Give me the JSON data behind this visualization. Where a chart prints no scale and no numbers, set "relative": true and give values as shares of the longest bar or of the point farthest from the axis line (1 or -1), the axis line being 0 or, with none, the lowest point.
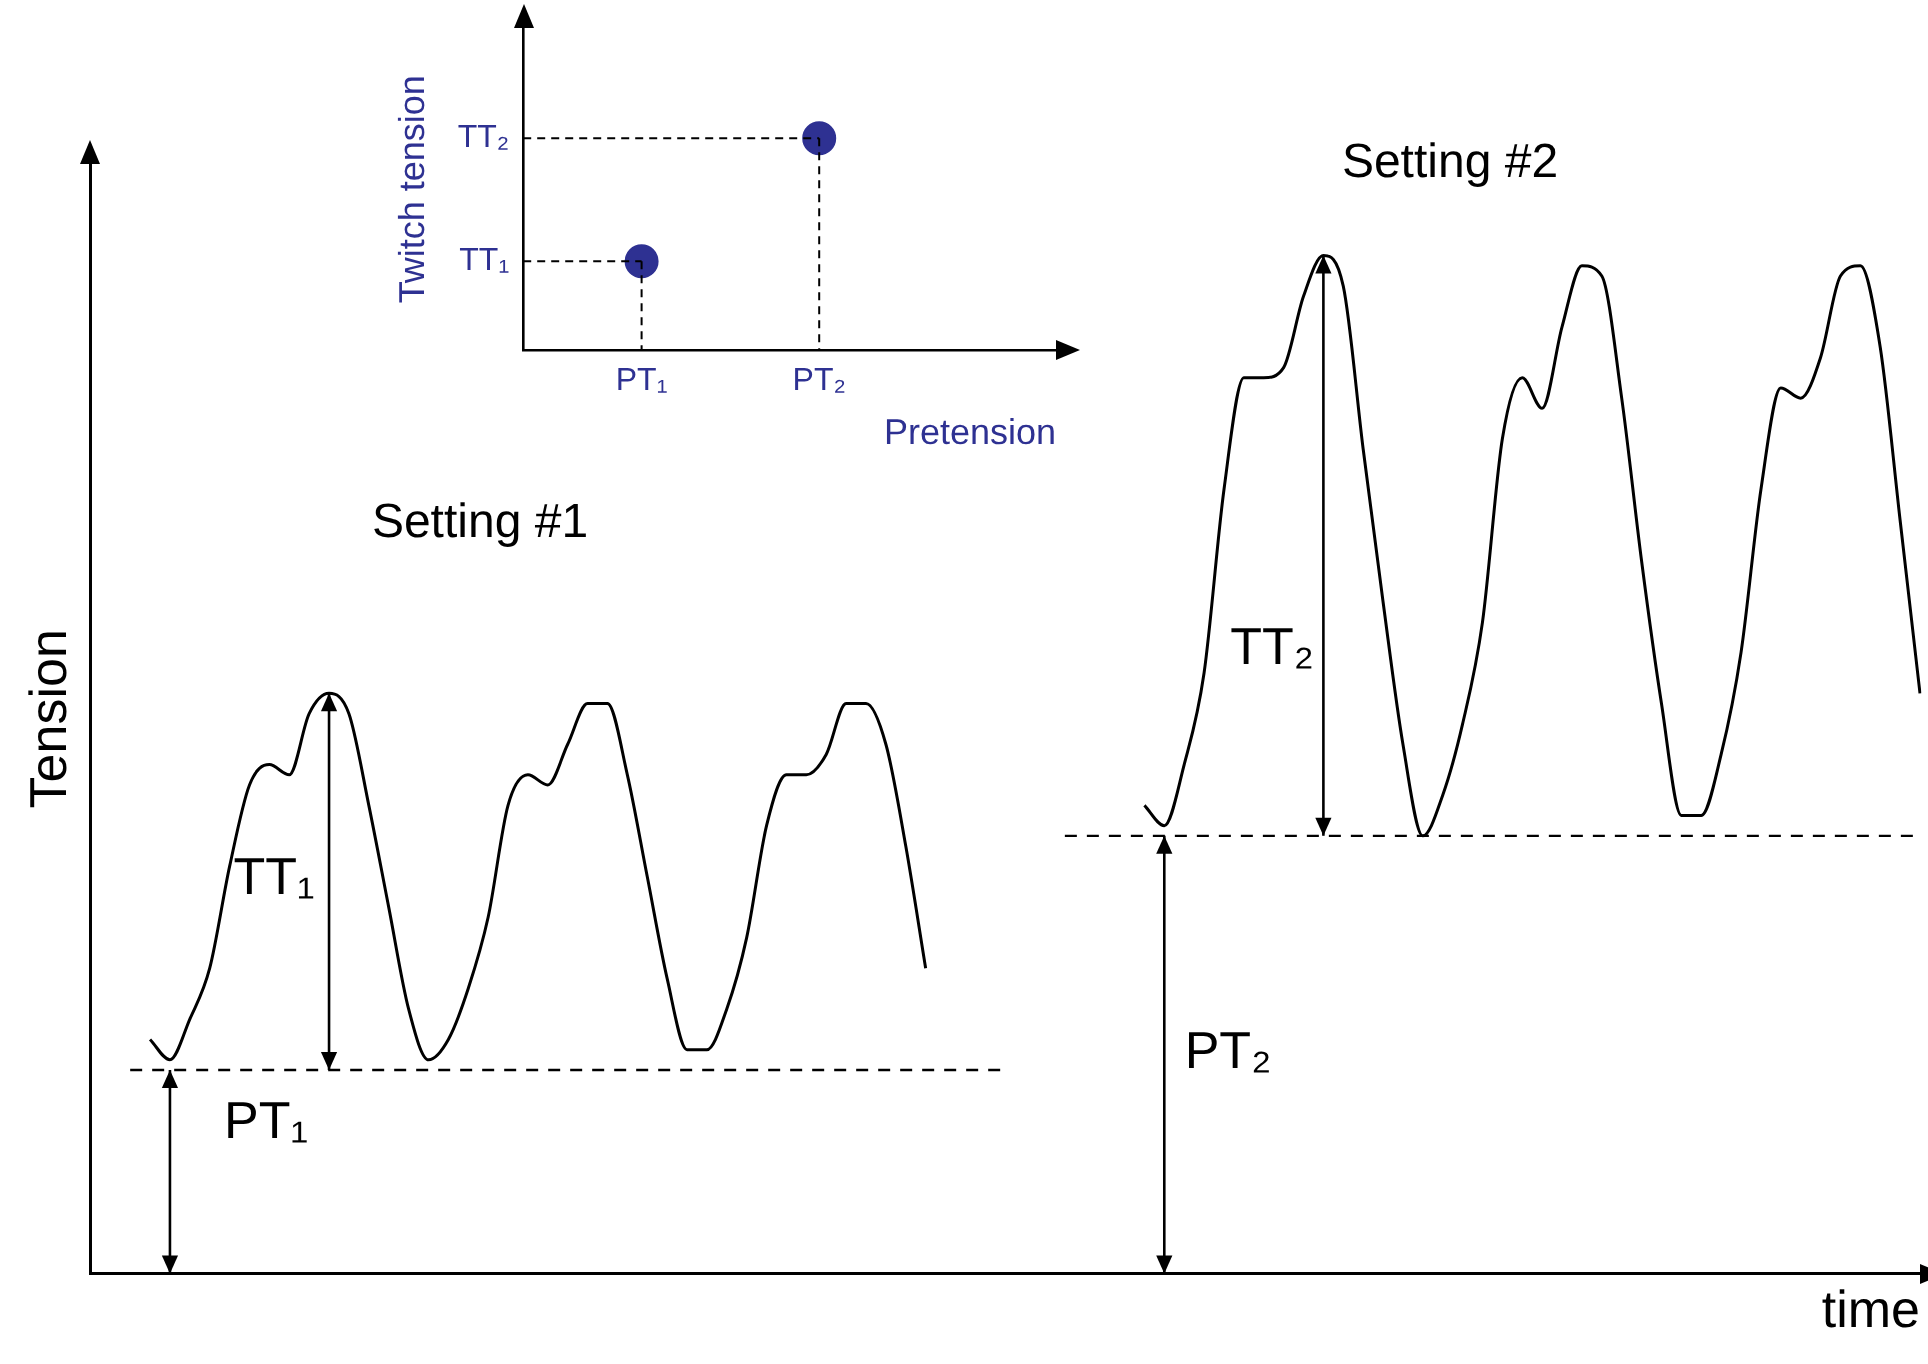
{
  "chart_data": [
    {
      "type": "line",
      "relative": true,
      "marker": "none",
      "xlabel": "time",
      "ylabel": "Tension",
      "annotations": [
        "Setting #1",
        "Setting #2",
        "TT₁",
        "PT₁",
        "TT₂",
        "PT₂"
      ],
      "categories": [
        null,
        null,
        null,
        null,
        null,
        null,
        null,
        null,
        null,
        null,
        null,
        null,
        null,
        null,
        null,
        null,
        null,
        null,
        null,
        null,
        null,
        null,
        null,
        null,
        null,
        null,
        null,
        null,
        null,
        null,
        null,
        null,
        null,
        null,
        null,
        null,
        null,
        null,
        null,
        null,
        null,
        null,
        null,
        null,
        null,
        null,
        null,
        null,
        null,
        null,
        null,
        null,
        null,
        null,
        null,
        null,
        null,
        null,
        null,
        null,
        null,
        null,
        null,
        null,
        null,
        null,
        null,
        null,
        null,
        null,
        null,
        null,
        null,
        null,
        null,
        null,
        null,
        null,
        null,
        null,
        null,
        null,
        null,
        null,
        null,
        null,
        null,
        null,
        null,
        null,
        null,
        null,
        null
      ],
      "series": [
        {
          "color": "#000000",
          "values": [
            null,
            null,
            null,
            0.23,
            0.21,
            0.25,
            0.3,
            0.4,
            0.48,
            0.5,
            0.49,
            0.55,
            0.57,
            0.55,
            0.46,
            0.36,
            0.26,
            0.21,
            0.23,
            0.28,
            0.35,
            0.46,
            0.49,
            0.48,
            0.52,
            0.56,
            0.56,
            0.49,
            0.39,
            0.29,
            0.22,
            0.22,
            0.26,
            0.33,
            0.44,
            0.49,
            0.49,
            0.51,
            0.56,
            0.56,
            0.52,
            0.42,
            0.3,
            null,
            null,
            null,
            null,
            null,
            null,
            null,
            null,
            null,
            null,
            null,
            null,
            null,
            null,
            null,
            null,
            null,
            null,
            null,
            null,
            null,
            null,
            null,
            null,
            null,
            null,
            null,
            null,
            null,
            null,
            null,
            null,
            null,
            null,
            null,
            null,
            null,
            null,
            null,
            null,
            null,
            null,
            null,
            null,
            null,
            null,
            null,
            null,
            null,
            null
          ]
        },
        {
          "color": "#000000",
          "values": [
            null,
            null,
            null,
            null,
            null,
            null,
            null,
            null,
            null,
            null,
            null,
            null,
            null,
            null,
            null,
            null,
            null,
            null,
            null,
            null,
            null,
            null,
            null,
            null,
            null,
            null,
            null,
            null,
            null,
            null,
            null,
            null,
            null,
            null,
            null,
            null,
            null,
            null,
            null,
            null,
            null,
            null,
            null,
            null,
            null,
            null,
            null,
            null,
            null,
            null,
            null,
            null,
            null,
            0.46,
            0.44,
            0.5,
            0.59,
            0.77,
            0.88,
            0.88,
            0.89,
            0.96,
            1,
            0.97,
            0.81,
            0.66,
            0.52,
            0.43,
            0.47,
            0.54,
            0.64,
            0.82,
            0.88,
            0.85,
            0.93,
            0.99,
            0.98,
            0.86,
            0.7,
            0.56,
            0.45,
            0.45,
            0.51,
            0.61,
            0.77,
            0.87,
            0.86,
            0.9,
            0.98,
            0.99,
            0.91,
            0.74,
            0.57
          ]
        },
        {
          "color": "#000000",
          "line_style": "dashed",
          "values": [
            null,
            null,
            0.2,
            0.2,
            0.2,
            0.2,
            0.2,
            0.2,
            0.2,
            0.2,
            0.2,
            0.2,
            0.2,
            0.2,
            0.2,
            0.2,
            0.2,
            0.2,
            0.2,
            0.2,
            0.2,
            0.2,
            0.2,
            0.2,
            0.2,
            0.2,
            0.2,
            0.2,
            0.2,
            0.2,
            0.2,
            0.2,
            0.2,
            0.2,
            0.2,
            0.2,
            0.2,
            0.2,
            0.2,
            0.2,
            0.2,
            0.2,
            0.2,
            0.2,
            0.2,
            0.2,
            0.2,
            null,
            null,
            null,
            null,
            null,
            null,
            null,
            null,
            null,
            null,
            null,
            null,
            null,
            null,
            null,
            null,
            null,
            null,
            null,
            null,
            null,
            null,
            null,
            null,
            null,
            null,
            null,
            null,
            null,
            null,
            null,
            null,
            null,
            null,
            null,
            null,
            null,
            null,
            null,
            null,
            null,
            null,
            null,
            null,
            null,
            null
          ]
        },
        {
          "color": "#000000",
          "line_style": "dashed",
          "values": [
            null,
            null,
            null,
            null,
            null,
            null,
            null,
            null,
            null,
            null,
            null,
            null,
            null,
            null,
            null,
            null,
            null,
            null,
            null,
            null,
            null,
            null,
            null,
            null,
            null,
            null,
            null,
            null,
            null,
            null,
            null,
            null,
            null,
            null,
            null,
            null,
            null,
            null,
            null,
            null,
            null,
            null,
            null,
            null,
            null,
            null,
            null,
            null,
            null,
            0.43,
            0.43,
            0.43,
            0.43,
            0.43,
            0.43,
            0.43,
            0.43,
            0.43,
            0.43,
            0.43,
            0.43,
            0.43,
            0.43,
            0.43,
            0.43,
            0.43,
            0.43,
            0.43,
            0.43,
            0.43,
            0.43,
            0.43,
            0.43,
            0.43,
            0.43,
            0.43,
            0.43,
            0.43,
            0.43,
            0.43,
            0.43,
            0.43,
            0.43,
            0.43,
            0.43,
            0.43,
            0.43,
            0.43,
            0.43,
            0.43,
            0.43,
            0.43,
            0.43
          ]
        }
      ]
    },
    {
      "type": "scatter",
      "relative": true,
      "marker": "circle",
      "color": "#2e3192",
      "xlabel": "Pretension",
      "ylabel": "Twitch tension",
      "categories": [
        null,
        null,
        "PT₁",
        null,
        null,
        "PT₂",
        null,
        null,
        null,
        null
      ],
      "values": [
        null,
        null,
        0.42,
        null,
        null,
        1,
        null,
        null,
        null,
        null
      ],
      "annotations": [
        "TT₁",
        "TT₂"
      ]
    }
  ]
}
